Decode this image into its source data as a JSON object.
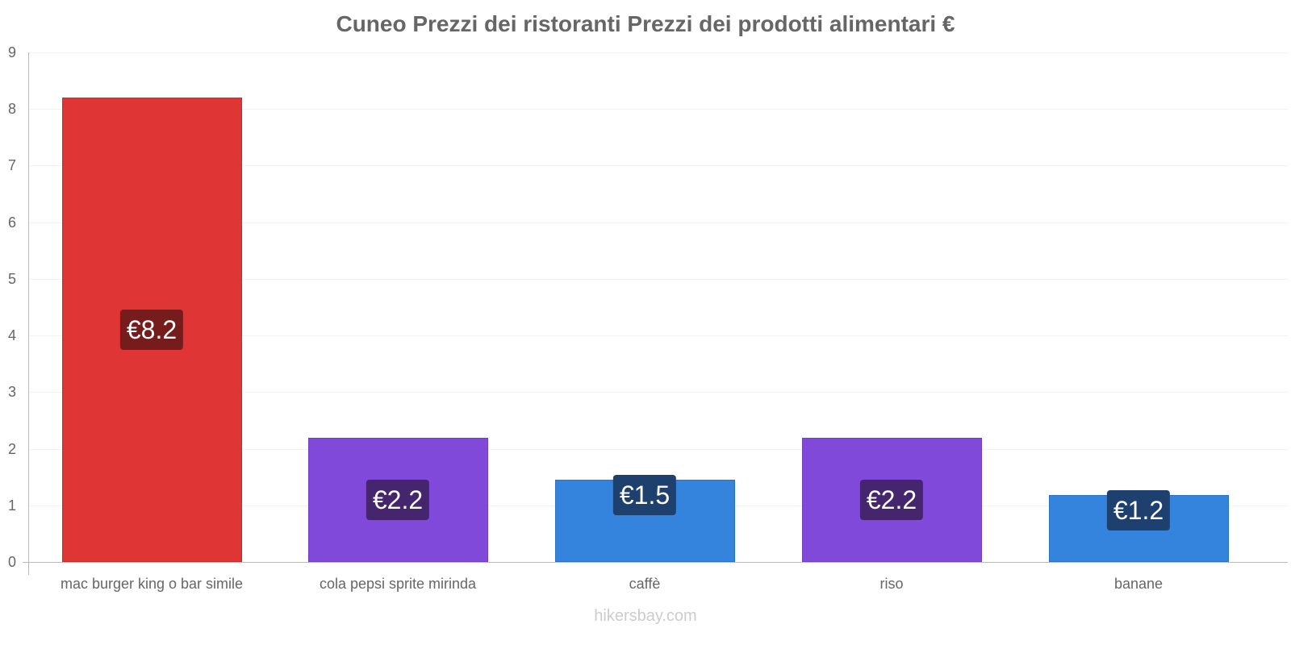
{
  "chart_data": {
    "type": "bar",
    "title": "Cuneo Prezzi dei ristoranti Prezzi dei prodotti alimentari €",
    "xlabel": "",
    "ylabel": "",
    "ylim": [
      0,
      9
    ],
    "yticks": [
      "0",
      "1",
      "2",
      "3",
      "4",
      "5",
      "6",
      "7",
      "8",
      "9"
    ],
    "grid": true,
    "legend": null,
    "categories": [
      "mac burger king o bar simile",
      "cola pepsi sprite mirinda",
      "caffè",
      "riso",
      "banane"
    ],
    "values": [
      8.2,
      2.2,
      1.45,
      2.2,
      1.18
    ],
    "data_labels": [
      "€8.2",
      "€2.2",
      "€1.5",
      "€2.2",
      "€1.2"
    ],
    "colors": [
      "#e03535",
      "#8149d9",
      "#3483dd",
      "#8149d9",
      "#3483dd"
    ],
    "label_colors": [
      "#771c1c",
      "#45256e",
      "#1d406f",
      "#45256e",
      "#1d406f"
    ]
  },
  "watermark": "hikersbay.com"
}
